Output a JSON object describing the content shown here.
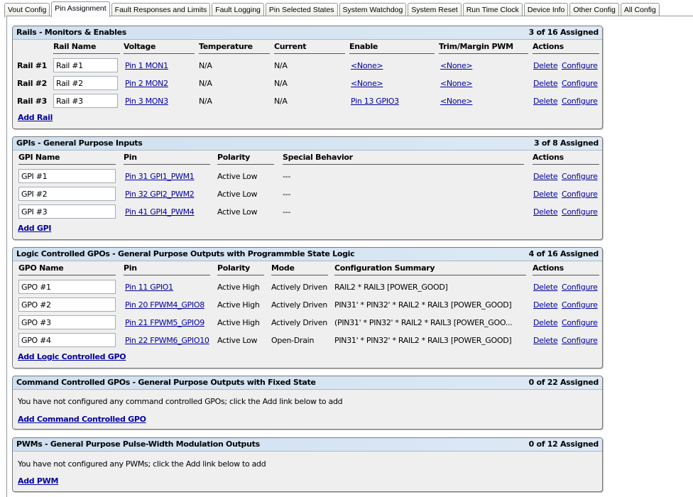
{
  "tabs": [
    "Vout Config",
    "Pin Assignment",
    "Fault Responses and Limits",
    "Fault Logging",
    "Pin Selected States",
    "System Watchdog",
    "System Reset",
    "Run Time Clock",
    "Device Info",
    "Other Config",
    "All Config"
  ],
  "active_tab": "Pin Assignment",
  "rails": {
    "title": "Rails - Monitors & Enables",
    "count": "3 of 16 Assigned",
    "headers": [
      "Rail Name",
      "Voltage",
      "Temperature",
      "Current",
      "Enable",
      "Trim/Margin PWM",
      "Actions"
    ],
    "rows": [
      {
        "label": "Rail #1",
        "name": "Rail #1",
        "voltage": "Pin 1 MON1",
        "temperature": "N/A",
        "current": "N/A",
        "enable": "<None>",
        "trim": "<None>"
      },
      {
        "label": "Rail #2",
        "name": "Rail #2",
        "voltage": "Pin 2 MON2",
        "temperature": "N/A",
        "current": "N/A",
        "enable": "<None>",
        "trim": "<None>"
      },
      {
        "label": "Rail #3",
        "name": "Rail #3",
        "voltage": "Pin 3 MON3",
        "temperature": "N/A",
        "current": "N/A",
        "enable": "Pin 13 GPIO3",
        "trim": "<None>"
      }
    ],
    "add": "Add Rail"
  },
  "gpis": {
    "title": "GPIs - General Purpose Inputs",
    "count": "3 of 8 Assigned",
    "headers": [
      "GPI Name",
      "Pin",
      "Polarity",
      "Special Behavior",
      "Actions"
    ],
    "rows": [
      {
        "name": "GPI #1",
        "pin": "Pin 31 GPI1_PWM1",
        "polarity": "Active Low",
        "special": "---"
      },
      {
        "name": "GPI #2",
        "pin": "Pin 32 GPI2_PWM2",
        "polarity": "Active Low",
        "special": "---"
      },
      {
        "name": "GPI #3",
        "pin": "Pin 41 GPI4_PWM4",
        "polarity": "Active Low",
        "special": "---"
      }
    ],
    "add": "Add GPI"
  },
  "gpos": {
    "title": "Logic Controlled GPOs - General Purpose Outputs with Programmble State Logic",
    "count": "4 of 16 Assigned",
    "headers": [
      "GPO Name",
      "Pin",
      "Polarity",
      "Mode",
      "Configuration Summary",
      "Actions"
    ],
    "rows": [
      {
        "name": "GPO #1",
        "pin": "Pin 11 GPIO1",
        "polarity": "Active High",
        "mode": "Actively Driven",
        "summary": "RAIL2 * RAIL3 [POWER_GOOD]"
      },
      {
        "name": "GPO #2",
        "pin": "Pin 20 FPWM4_GPIO8",
        "polarity": "Active High",
        "mode": "Actively Driven",
        "summary": "PIN31' * PIN32' * RAIL2 * RAIL3 [POWER_GOOD]"
      },
      {
        "name": "GPO #3",
        "pin": "Pin 21 FPWM5_GPIO9",
        "polarity": "Active High",
        "mode": "Actively Driven",
        "summary": "(PIN31' * PIN32' * RAIL2 * RAIL3 [POWER_GOO..."
      },
      {
        "name": "GPO #4",
        "pin": "Pin 22 FPWM6_GPIO10",
        "polarity": "Active Low",
        "mode": "Open-Drain",
        "summary": "PIN31' * PIN32' * RAIL2 * RAIL3 [POWER_GOOD]"
      }
    ],
    "add": "Add Logic Controlled GPO"
  },
  "cmd_gpos": {
    "title": "Command Controlled GPOs - General Purpose Outputs with Fixed State",
    "count": "0 of 22 Assigned",
    "message": "You have not configured any command controlled GPOs; click the Add link below to add",
    "add": "Add Command Controlled GPO"
  },
  "pwms": {
    "title": "PWMs - General Purpose Pulse-Width Modulation Outputs",
    "count": "0 of 12 Assigned",
    "message": "You have not configured any PWMs; click the Add link below to add",
    "add": "Add PWM"
  },
  "actions": {
    "delete": "Delete",
    "configure": "Configure"
  }
}
